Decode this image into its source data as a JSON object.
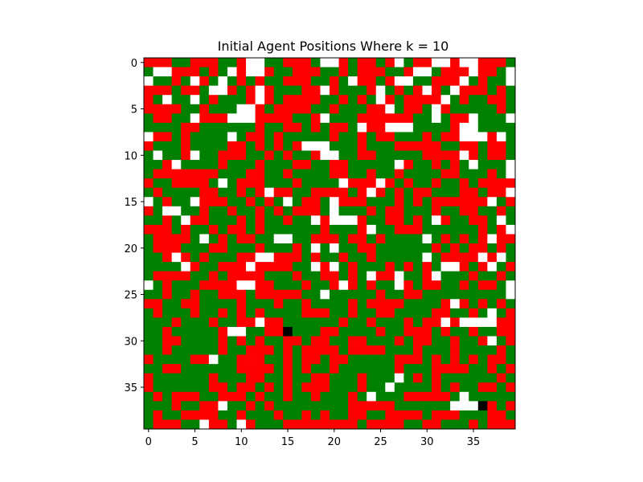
{
  "chart_data": {
    "type": "heatmap",
    "title": "Initial Agent Positions Where k = 10",
    "xlabel": "",
    "ylabel": "",
    "grid_size": 40,
    "xlim": [
      -0.5,
      39.5
    ],
    "ylim": [
      39.5,
      -0.5
    ],
    "x_ticks": [
      0,
      5,
      10,
      15,
      20,
      25,
      30,
      35
    ],
    "y_ticks": [
      0,
      5,
      10,
      15,
      20,
      25,
      30,
      35
    ],
    "grid": false,
    "legend": "none",
    "colors": {
      "empty": "#ffffff",
      "agent_a": "#ff0000",
      "agent_b": "#008000",
      "marked": "#000000"
    },
    "color_codes": {
      "0": "empty",
      "1": "agent_a",
      "2": "agent_b",
      "3": "marked"
    },
    "rows": [
      "1112211122100221112001211210211001001112",
      "2001112120100122111221211122100211101120",
      "0221201202121221112212011210022111021220",
      "1112112001210122211012221021210120111212",
      "1202202122210121111221212012111102122112",
      "1111221222001211112212221102112012222212",
      "2112201110001111221022211111122021102220",
      "2222112222221221121211201100022221002222",
      "0112122220211212222212212112221211000102",
      "1222122221121212100022212221111122112112",
      "2022102211122121221002211222221111012112",
      "2210222212221222112211222220122121202220",
      "2111111122211221222211221221222211222120",
      "1221111202111222122220111012122122121111",
      "2122221122121011221111210121211222112110",
      "0212201112212120211201112221212111111021",
      "1200221221221212111202221211222122112212",
      "2212011222121221220100012211212012211202",
      "1112122121121222222122210221112222221210",
      "2111120212112200221112112122220212121011",
      "2111222112221222120202211222222121211212",
      "2210121222110011121221221222220211110102",
      "2222012211101111220102122212121200121021",
      "2111122121111222122112120110221022212212",
      "0212221111001122212210121220121122121120",
      "2212212211121111122022222122112222222220",
      "1122112222122212212222121111222210121212",
      "2122212212121222211122122112222112212021",
      "2221222122110112222221221222121101000011",
      "2212222210022113222112222122111212212211",
      "2211222212121221121122112221211221221021",
      "2212222212211121211112111122212221222212",
      "1222211022111221211211222221112121212112",
      "2211222222111121212212222221222111122121",
      "1222222122211221221122212220212122222212",
      "1222222112112121211122212202222121221121",
      "2121112211121221221222120222111112022222",
      "2221221102212122222222111112222220003121",
      "2122111122122212212122112211112111222112",
      "2111220112012221111111121111221122212111"
    ]
  }
}
